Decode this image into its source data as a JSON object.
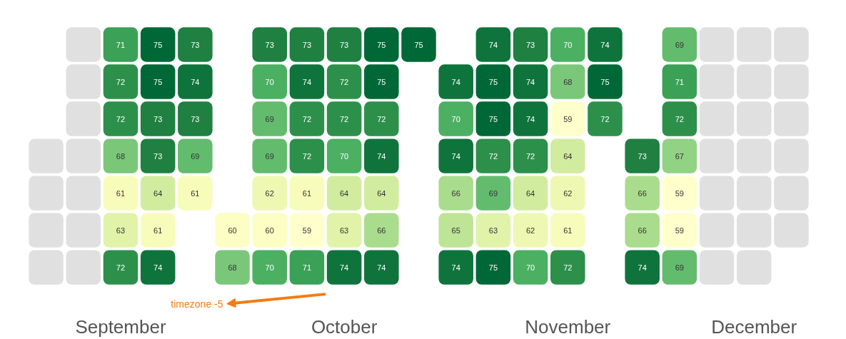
{
  "chart_data": {
    "type": "heatmap",
    "categories": [
      null,
      null,
      "September",
      null,
      null,
      null,
      null,
      null,
      "October",
      null,
      null,
      null,
      null,
      null,
      "November",
      null,
      null,
      null,
      null,
      "December",
      null
    ],
    "y_categories": [
      null,
      null,
      null,
      null,
      null,
      null,
      null
    ],
    "cells": [
      [
        null,
        null,
        71,
        75,
        73,
        null,
        73,
        73,
        73,
        75,
        75,
        null,
        74,
        73,
        70,
        74,
        null,
        69,
        null,
        null,
        null
      ],
      [
        null,
        null,
        72,
        75,
        74,
        null,
        70,
        74,
        72,
        75,
        null,
        74,
        75,
        74,
        68,
        75,
        null,
        71,
        null,
        null,
        null
      ],
      [
        null,
        null,
        72,
        73,
        73,
        null,
        69,
        72,
        72,
        72,
        null,
        70,
        75,
        74,
        59,
        72,
        null,
        72,
        null,
        null,
        null
      ],
      [
        null,
        null,
        68,
        73,
        69,
        null,
        69,
        72,
        70,
        74,
        null,
        74,
        72,
        72,
        64,
        null,
        73,
        67,
        null,
        null,
        null
      ],
      [
        null,
        null,
        61,
        64,
        61,
        null,
        62,
        61,
        64,
        64,
        null,
        66,
        69,
        64,
        62,
        null,
        66,
        59,
        null,
        null,
        null
      ],
      [
        null,
        null,
        63,
        61,
        null,
        60,
        60,
        59,
        63,
        66,
        null,
        65,
        63,
        62,
        61,
        null,
        66,
        59,
        null,
        null,
        null
      ],
      [
        null,
        null,
        72,
        74,
        null,
        68,
        70,
        71,
        74,
        74,
        null,
        74,
        75,
        70,
        72,
        null,
        74,
        69,
        null,
        null,
        null
      ]
    ],
    "data_labels": true,
    "tick_labels": "x",
    "grid": false,
    "annotations": [
      "timezone -5"
    ]
  }
}
